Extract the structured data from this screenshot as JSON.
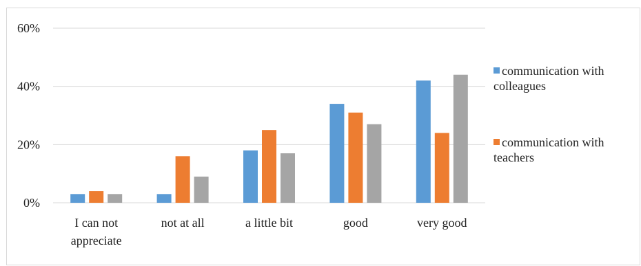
{
  "chart_data": {
    "type": "bar",
    "categories": [
      [
        "I can not",
        "appreciate"
      ],
      [
        "not at all"
      ],
      [
        "a little bit"
      ],
      [
        "good"
      ],
      [
        "very good"
      ]
    ],
    "series": [
      {
        "name": "communication with colleagues",
        "legend_lines": [
          "communication with",
          "colleagues"
        ],
        "color": "#5b9bd5",
        "values": [
          3,
          3,
          18,
          34,
          42
        ]
      },
      {
        "name": "communication with teachers",
        "legend_lines": [
          "communication with",
          "teachers"
        ],
        "color": "#ed7d31",
        "values": [
          4,
          16,
          25,
          31,
          24
        ]
      },
      {
        "name": "",
        "color": "#a5a5a5",
        "values": [
          3,
          9,
          17,
          27,
          44
        ]
      }
    ],
    "yticks": [
      "0%",
      "20%",
      "40%",
      "60%"
    ],
    "ylim": [
      0,
      60
    ],
    "grid": true,
    "legend_position": "right",
    "title": "",
    "xlabel": "",
    "ylabel": ""
  }
}
